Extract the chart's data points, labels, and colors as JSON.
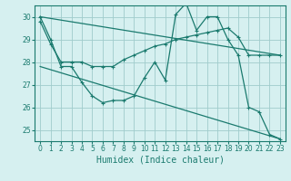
{
  "xlabel": "Humidex (Indice chaleur)",
  "background_color": "#d6f0f0",
  "grid_color": "#a0cccc",
  "line_color": "#1a7a6e",
  "xlim": [
    -0.5,
    23.5
  ],
  "ylim": [
    24.5,
    30.5
  ],
  "yticks": [
    25,
    26,
    27,
    28,
    29,
    30
  ],
  "xticks": [
    0,
    1,
    2,
    3,
    4,
    5,
    6,
    7,
    8,
    9,
    10,
    11,
    12,
    13,
    14,
    15,
    16,
    17,
    18,
    19,
    20,
    21,
    22,
    23
  ],
  "series1_x": [
    0,
    1,
    2,
    3,
    4,
    5,
    6,
    7,
    8,
    9,
    10,
    11,
    12,
    13,
    14,
    15,
    16,
    17,
    18,
    19,
    20,
    21,
    22,
    23
  ],
  "series1_y": [
    30.0,
    29.0,
    27.8,
    27.8,
    27.1,
    26.5,
    26.2,
    26.3,
    26.3,
    26.5,
    27.3,
    28.0,
    27.2,
    30.1,
    30.6,
    29.4,
    30.0,
    30.0,
    29.0,
    28.3,
    26.0,
    25.8,
    24.8,
    24.6
  ],
  "series2_x": [
    0,
    1,
    2,
    3,
    4,
    5,
    6,
    7,
    8,
    9,
    10,
    11,
    12,
    13,
    14,
    15,
    16,
    17,
    18,
    19,
    20,
    21,
    22,
    23
  ],
  "series2_y": [
    29.8,
    28.8,
    28.0,
    28.0,
    28.0,
    27.8,
    27.8,
    27.8,
    28.1,
    28.3,
    28.5,
    28.7,
    28.8,
    29.0,
    29.1,
    29.2,
    29.3,
    29.4,
    29.5,
    29.1,
    28.3,
    28.3,
    28.3,
    28.3
  ],
  "series3_x": [
    0,
    23
  ],
  "series3_y": [
    30.0,
    28.3
  ],
  "series4_x": [
    0,
    23
  ],
  "series4_y": [
    27.8,
    24.6
  ],
  "xlabel_fontsize": 7,
  "tick_fontsize": 5.5
}
